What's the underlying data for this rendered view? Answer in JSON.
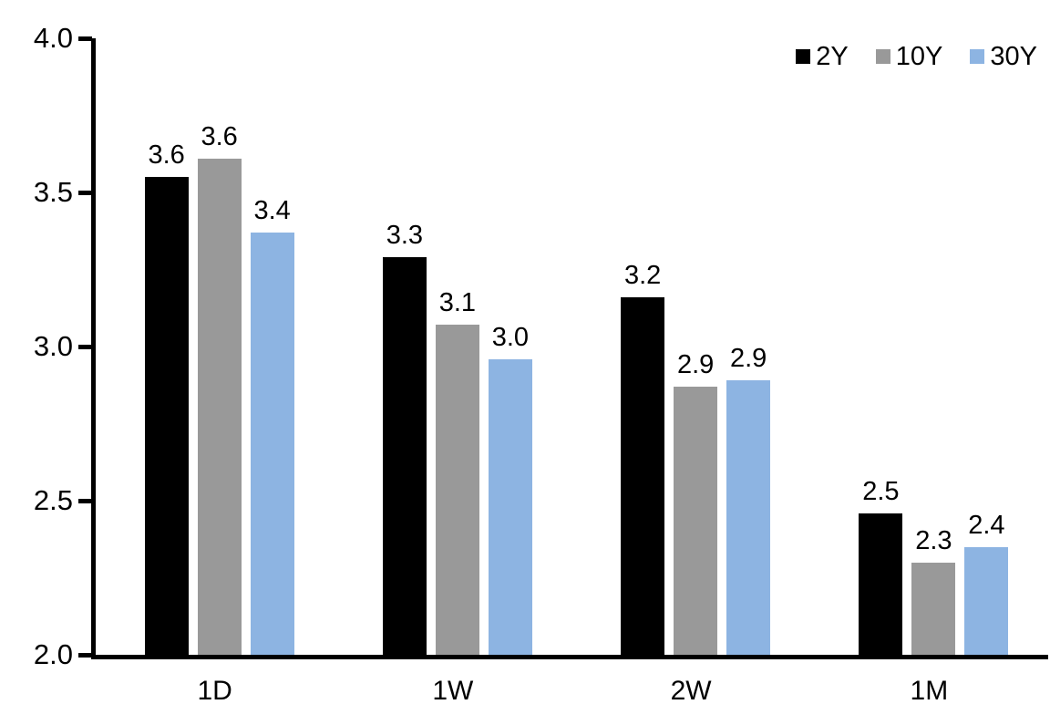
{
  "chart_data": {
    "type": "bar",
    "title": "",
    "categories": [
      "1D",
      "1W",
      "2W",
      "1M"
    ],
    "series": [
      {
        "name": "2Y",
        "color": "#000000",
        "values": [
          3.55,
          3.29,
          3.16,
          2.46
        ],
        "labels": [
          "3.6",
          "3.3",
          "3.2",
          "2.5"
        ]
      },
      {
        "name": "10Y",
        "color": "#999999",
        "values": [
          3.61,
          3.07,
          2.87,
          2.3
        ],
        "labels": [
          "3.6",
          "3.1",
          "2.9",
          "2.3"
        ]
      },
      {
        "name": "30Y",
        "color": "#8db4e2",
        "values": [
          3.37,
          2.96,
          2.89,
          2.35
        ],
        "labels": [
          "3.4",
          "3.0",
          "2.9",
          "2.4"
        ]
      }
    ],
    "y_axis": {
      "min": 2.0,
      "max": 4.0,
      "tick_labels": [
        "4.0",
        "3.5",
        "3.0",
        "2.5",
        "2.0"
      ],
      "tick_values": [
        4.0,
        3.5,
        3.0,
        2.5,
        2.0
      ]
    },
    "x_axis": {
      "labels": [
        "1D",
        "1W",
        "2W",
        "1M"
      ]
    },
    "legend": {
      "entries": [
        "2Y",
        "10Y",
        "30Y"
      ],
      "position": "top-right"
    },
    "grid": false,
    "background": "#ffffff",
    "text_color": "#000000"
  }
}
